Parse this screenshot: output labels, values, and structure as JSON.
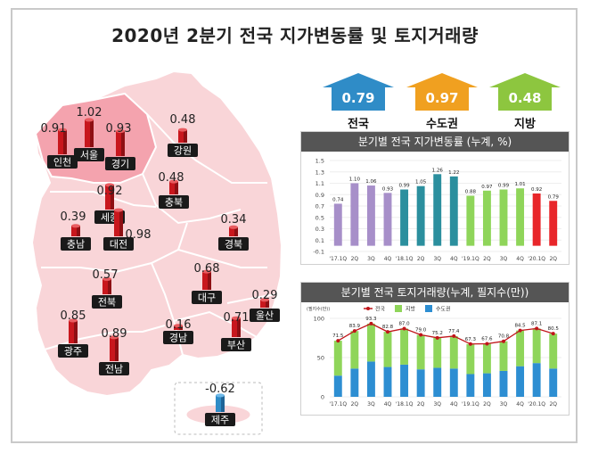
{
  "title": "2020년 2분기 전국 지가변동률 및 토지거래량",
  "summary": [
    {
      "value": "0.79",
      "label": "전국",
      "color": "#2f8cc7"
    },
    {
      "value": "0.97",
      "label": "수도권",
      "color": "#f0a020"
    },
    {
      "value": "0.48",
      "label": "지방",
      "color": "#8dc63f"
    }
  ],
  "map": {
    "regions": [
      {
        "name": "인천",
        "value": "0.91",
        "sign": "pos"
      },
      {
        "name": "서울",
        "value": "1.02",
        "sign": "pos"
      },
      {
        "name": "경기",
        "value": "0.93",
        "sign": "pos"
      },
      {
        "name": "강원",
        "value": "0.48",
        "sign": "pos"
      },
      {
        "name": "충북",
        "value": "0.48",
        "sign": "pos"
      },
      {
        "name": "세종",
        "value": "0.92",
        "sign": "pos"
      },
      {
        "name": "충남",
        "value": "0.39",
        "sign": "pos"
      },
      {
        "name": "대전",
        "value": "0.98",
        "sign": "pos"
      },
      {
        "name": "경북",
        "value": "0.34",
        "sign": "pos"
      },
      {
        "name": "전북",
        "value": "0.57",
        "sign": "pos"
      },
      {
        "name": "대구",
        "value": "0.68",
        "sign": "pos"
      },
      {
        "name": "울산",
        "value": "0.29",
        "sign": "pos"
      },
      {
        "name": "광주",
        "value": "0.85",
        "sign": "pos"
      },
      {
        "name": "전남",
        "value": "0.89",
        "sign": "pos"
      },
      {
        "name": "경남",
        "value": "0.16",
        "sign": "pos"
      },
      {
        "name": "부산",
        "value": "0.71",
        "sign": "pos"
      },
      {
        "name": "제주",
        "value": "-0.62",
        "sign": "neg"
      }
    ]
  },
  "chart_data": [
    {
      "type": "bar",
      "title": "분기별 전국 지가변동률 (누계, %)",
      "categories": [
        "'17.1Q",
        "2Q",
        "3Q",
        "4Q",
        "'18.1Q",
        "2Q",
        "3Q",
        "4Q",
        "'19.1Q",
        "2Q",
        "3Q",
        "4Q",
        "'20.1Q",
        "2Q"
      ],
      "values": [
        0.74,
        1.1,
        1.06,
        0.93,
        0.99,
        1.05,
        1.26,
        1.22,
        0.88,
        0.97,
        0.99,
        1.01,
        0.92,
        0.79
      ],
      "value_labels": [
        "0.74",
        "1.10",
        "1.06",
        "0.93",
        "0.99",
        "1.05",
        "1.26",
        "1.22",
        "0.88",
        "0.97",
        "0.99",
        "1.01",
        "0.92",
        "0.79"
      ],
      "group_colors": [
        "#a78fc9",
        "#a78fc9",
        "#a78fc9",
        "#a78fc9",
        "#2b8f9e",
        "#2b8f9e",
        "#2b8f9e",
        "#2b8f9e",
        "#8fd55a",
        "#8fd55a",
        "#8fd55a",
        "#8fd55a",
        "#e8262a",
        "#e8262a"
      ],
      "ylim": [
        -0.1,
        1.5
      ],
      "yticks": [
        "1.5",
        "1.3",
        "1.1",
        "0.9",
        "0.7",
        "0.5",
        "0.3",
        "0.1",
        "-0.1"
      ],
      "ytick_values": [
        1.5,
        1.3,
        1.1,
        0.9,
        0.7,
        0.5,
        0.3,
        0.1,
        -0.1
      ]
    },
    {
      "type": "bar",
      "title": "분기별 전국 토지거래량(누계, 필지수(만))",
      "unit": "(필지수(만))",
      "categories": [
        "'17.1Q",
        "2Q",
        "3Q",
        "4Q",
        "'18.1Q",
        "2Q",
        "3Q",
        "4Q",
        "'19.1Q",
        "2Q",
        "3Q",
        "4Q",
        "'20.1Q",
        "2Q"
      ],
      "series": [
        {
          "name": "전국",
          "values": [
            71.5,
            83.9,
            93.3,
            82.8,
            87.0,
            79.0,
            75.2,
            77.4,
            67.3,
            67.6,
            70.8,
            84.5,
            87.1,
            80.5
          ],
          "color": "#c0151a",
          "kind": "line"
        },
        {
          "name": "지방",
          "values": [
            44.5,
            47.9,
            48.3,
            44.8,
            46.0,
            44.0,
            38.2,
            41.4,
            38.3,
            37.6,
            37.8,
            45.5,
            44.1,
            44.5
          ],
          "color": "#8fd55a",
          "kind": "stack"
        },
        {
          "name": "수도권",
          "values": [
            27.0,
            36.0,
            45.0,
            38.0,
            41.0,
            35.0,
            37.0,
            36.0,
            29.0,
            30.0,
            33.0,
            39.0,
            43.0,
            36.0
          ],
          "color": "#2d8ed2",
          "kind": "stack"
        }
      ],
      "total_labels": [
        "71.5",
        "83.9",
        "93.3",
        "82.8",
        "87.0",
        "79.0",
        "75.2",
        "77.4",
        "67.3",
        "67.6",
        "70.8",
        "84.5",
        "87.1",
        "80.5"
      ],
      "ylim": [
        0,
        100
      ],
      "yticks": [
        "100",
        "50",
        "0"
      ],
      "ytick_values": [
        100,
        50,
        0
      ]
    }
  ]
}
